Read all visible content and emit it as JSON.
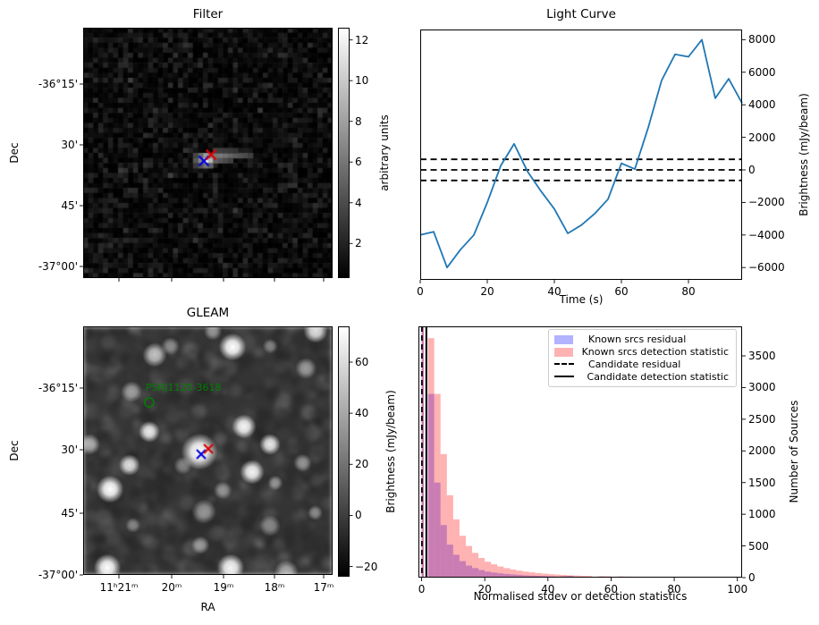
{
  "figure": {
    "background": "#ffffff",
    "text_color": "#000000",
    "accent_blue": "#1f77b4"
  },
  "chart_data": [
    {
      "id": "filter",
      "type": "heatmap",
      "title": "Filter",
      "ylabel": "Dec",
      "ytick_labels": [
        "-36°15'",
        "30'",
        "45'",
        "-37°00'"
      ],
      "xtick_labels": [],
      "colorbar": {
        "label": "arbitrary units",
        "ticks": [
          12,
          10,
          8,
          6,
          4,
          2
        ],
        "vmin": 0.3,
        "vmax": 12.6
      },
      "image": {
        "style": "dark pixelated noise with bright central streak",
        "noise_seed": 42,
        "grid_cols": 50,
        "grid_rows": 50,
        "noise_max": 2.6,
        "streak_cells": [
          [
            24,
            26,
            13
          ],
          [
            25,
            26,
            9.5
          ],
          [
            23,
            26,
            7
          ],
          [
            24,
            25,
            8
          ],
          [
            25,
            25,
            7
          ],
          [
            24,
            27,
            6
          ],
          [
            25,
            27,
            5
          ],
          [
            23,
            25,
            5.5
          ],
          [
            23,
            27,
            4.5
          ],
          [
            22,
            26,
            4.5
          ],
          [
            26,
            25,
            6
          ],
          [
            27,
            25,
            6.2
          ],
          [
            28,
            25,
            5.8
          ],
          [
            29,
            25,
            5.2
          ],
          [
            30,
            25,
            4.6
          ],
          [
            31,
            25,
            4.2
          ],
          [
            32,
            25,
            3.8
          ],
          [
            33,
            25,
            3.2
          ],
          [
            26,
            26,
            5
          ],
          [
            27,
            26,
            4.4
          ],
          [
            28,
            26,
            3.8
          ],
          [
            29,
            26,
            3.2
          ],
          [
            26,
            24,
            3.4
          ],
          [
            27,
            24,
            3.2
          ],
          [
            28,
            24,
            3
          ],
          [
            29,
            24,
            2.8
          ],
          [
            30,
            24,
            2.6
          ],
          [
            22,
            25,
            3.5
          ],
          [
            22,
            27,
            3
          ]
        ]
      },
      "markers": [
        {
          "shape": "x",
          "color": "#0000dd",
          "x": 0.484,
          "y": 0.532
        },
        {
          "shape": "x",
          "color": "#dd0000",
          "x": 0.513,
          "y": 0.507
        }
      ]
    },
    {
      "id": "light_curve",
      "type": "line",
      "title": "Light Curve",
      "xlabel": "Time (s)",
      "ylabel": "Brightness (mJy/beam)",
      "line_color": "#1f77b4",
      "x": [
        0,
        4,
        8,
        12,
        16,
        20,
        24,
        28,
        32,
        36,
        40,
        44,
        48,
        52,
        56,
        60,
        64,
        68,
        72,
        76,
        80,
        84,
        88,
        92,
        96
      ],
      "y": [
        -4000,
        -3800,
        -6000,
        -4900,
        -4000,
        -2000,
        250,
        1600,
        -100,
        -1300,
        -2400,
        -3900,
        -3400,
        -2700,
        -1800,
        400,
        50,
        2600,
        5500,
        7100,
        6950,
        8000,
        4400,
        5600,
        4100
      ],
      "xticks": [
        0,
        20,
        40,
        60,
        80
      ],
      "ytick_labels": [
        "8000",
        "6000",
        "4000",
        "2000",
        "0",
        "−2000",
        "−4000",
        "−6000"
      ],
      "yticks": [
        8000,
        6000,
        4000,
        2000,
        0,
        -2000,
        -4000,
        -6000
      ],
      "xlim": [
        0,
        96
      ],
      "ylim": [
        -6758,
        8626
      ],
      "hlines": {
        "values": [
          650,
          0,
          -650
        ],
        "style": "dashed",
        "color": "#000000"
      }
    },
    {
      "id": "gleam",
      "type": "heatmap",
      "title": "GLEAM",
      "xlabel": "RA",
      "ylabel": "Dec",
      "ytick_labels": [
        "-36°15'",
        "30'",
        "45'",
        "-37°00'"
      ],
      "xtick_labels": [
        "11ʰ21ᵐ",
        "20ᵐ",
        "19ᵐ",
        "18ᵐ",
        "17ᵐ"
      ],
      "colorbar": {
        "label": "Brightness (mJy/beam)",
        "ticks": [
          60,
          40,
          20,
          0,
          "−20"
        ],
        "tick_values": [
          60,
          40,
          20,
          0,
          -20
        ],
        "vmin": -24,
        "vmax": 74
      },
      "annotation": {
        "text": "PSRJ1120-3618",
        "color": "#008000",
        "x": 0.251,
        "y": 0.225,
        "circle": {
          "x": 0.265,
          "y": 0.306
        }
      },
      "markers": [
        {
          "shape": "x",
          "color": "#0000dd",
          "x": 0.473,
          "y": 0.514
        },
        {
          "shape": "x",
          "color": "#dd0000",
          "x": 0.502,
          "y": 0.493
        }
      ],
      "image": {
        "style": "smoothed grayscale sky map with point sources",
        "noise_seed": 7,
        "blobs": [
          [
            0.599,
            0.083,
            9,
            1
          ],
          [
            0.932,
            0.018,
            8,
            0.85
          ],
          [
            0.287,
            0.115,
            8,
            0.7
          ],
          [
            0.194,
            0.263,
            7,
            0.55
          ],
          [
            0.025,
            0.475,
            7,
            0.6
          ],
          [
            0.265,
            0.424,
            7,
            0.9
          ],
          [
            0.645,
            0.403,
            8,
            0.95
          ],
          [
            0.749,
            0.475,
            7,
            0.9
          ],
          [
            0.186,
            0.558,
            7,
            0.85
          ],
          [
            0.677,
            0.586,
            8,
            0.95
          ],
          [
            0.108,
            0.655,
            9,
            1
          ],
          [
            0.466,
            0.504,
            12,
            1
          ],
          [
            0.893,
            0.169,
            7,
            0.5
          ],
          [
            0.484,
            0.745,
            8,
            0.5
          ],
          [
            0.749,
            0.802,
            7,
            0.45
          ],
          [
            0.097,
            0.971,
            9,
            1
          ],
          [
            0.591,
            0.971,
            9,
            0.95
          ],
          [
            0.814,
            0.989,
            8,
            0.6
          ],
          [
            0.35,
            0.08,
            6,
            0.45
          ],
          [
            0.52,
            0.02,
            6,
            0.5
          ],
          [
            0.75,
            0.08,
            5,
            0.4
          ],
          [
            0.88,
            0.55,
            6,
            0.5
          ],
          [
            0.93,
            0.75,
            5,
            0.45
          ],
          [
            0.4,
            0.56,
            6,
            0.4
          ],
          [
            0.56,
            0.66,
            6,
            0.45
          ],
          [
            0.2,
            0.8,
            5,
            0.4
          ],
          [
            0.47,
            0.88,
            6,
            0.5
          ],
          [
            0.77,
            0.63,
            5,
            0.5
          ]
        ]
      }
    },
    {
      "id": "histogram",
      "type": "bar",
      "title": "",
      "xlabel": "Normalised stdev or detection statistics",
      "ylabel": "Number of Sources",
      "xticks": [
        0,
        20,
        40,
        60,
        80,
        100
      ],
      "yticks": [
        0,
        500,
        1000,
        1500,
        2000,
        2500,
        3000,
        3500
      ],
      "xlim": [
        -1,
        101.5
      ],
      "ylim": [
        0,
        3966
      ],
      "series": [
        {
          "name": "Known srcs residual",
          "color": "rgba(0,0,255,0.3)",
          "bin_start": 2,
          "bin_width": 2,
          "values": [
            2900,
            1500,
            830,
            520,
            360,
            260,
            190,
            150,
            120,
            95,
            80,
            68,
            58,
            50,
            43,
            37,
            32,
            28,
            24,
            20,
            17,
            22,
            26,
            14,
            8
          ]
        },
        {
          "name": "Known srcs detection statistic",
          "color": "rgba(255,0,0,0.3)",
          "bin_start": 2,
          "bin_width": 2,
          "values": [
            3780,
            2900,
            1950,
            1300,
            920,
            660,
            500,
            390,
            310,
            250,
            210,
            175,
            150,
            128,
            110,
            95,
            83,
            72,
            63,
            55,
            48,
            42,
            37,
            33,
            29,
            26,
            0,
            23,
            21,
            0,
            19,
            17,
            15,
            14,
            13,
            12,
            11,
            10,
            0,
            10,
            9,
            9,
            0,
            8,
            8,
            0,
            8,
            7,
            7
          ]
        }
      ],
      "offscale_spike": {
        "x0": 0.0,
        "x1": 0.7,
        "note": "both series overlap, clipped at top of axis"
      },
      "vlines": [
        {
          "name": "Candidate residual",
          "x": 0.1,
          "style": "dashed",
          "color": "#000000"
        },
        {
          "name": "Candidate detection statistic",
          "x": 1.5,
          "style": "solid",
          "color": "#000000"
        }
      ],
      "legend": {
        "entries": [
          {
            "swatch": "patch",
            "color": "rgba(0,0,255,0.3)",
            "label": "Known srcs residual"
          },
          {
            "swatch": "patch",
            "color": "rgba(255,0,0,0.3)",
            "label": "Known srcs detection statistic"
          },
          {
            "swatch": "dashed-line",
            "color": "#000000",
            "label": "Candidate residual"
          },
          {
            "swatch": "solid-line",
            "color": "#000000",
            "label": "Candidate detection statistic"
          }
        ]
      }
    }
  ]
}
